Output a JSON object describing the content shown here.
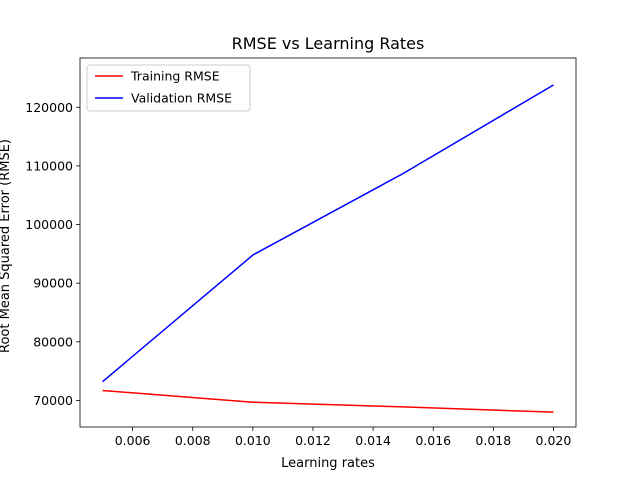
{
  "chart_data": {
    "type": "line",
    "title": "RMSE vs Learning Rates",
    "xlabel": "Learning rates",
    "ylabel": "Root Mean Squared Error (RMSE)",
    "xlim": [
      0.00425,
      0.02075
    ],
    "ylim": [
      65470,
      128400
    ],
    "xticks": [
      0.006,
      0.008,
      0.01,
      0.012,
      0.014,
      0.016,
      0.018,
      0.02
    ],
    "xtick_labels": [
      "0.006",
      "0.008",
      "0.010",
      "0.012",
      "0.014",
      "0.016",
      "0.018",
      "0.020"
    ],
    "yticks": [
      70000,
      80000,
      90000,
      100000,
      110000,
      120000
    ],
    "ytick_labels": [
      "70000",
      "80000",
      "90000",
      "100000",
      "110000",
      "120000"
    ],
    "grid": false,
    "legend_position": "upper left",
    "series": [
      {
        "name": "Training RMSE",
        "color": "#ff0000",
        "x": [
          0.005,
          0.01,
          0.015,
          0.02
        ],
        "y": [
          71700,
          69700,
          68900,
          68000
        ]
      },
      {
        "name": "Validation RMSE",
        "color": "#0000ff",
        "x": [
          0.005,
          0.01,
          0.015,
          0.02
        ],
        "y": [
          73200,
          94800,
          108700,
          123800
        ]
      }
    ]
  }
}
